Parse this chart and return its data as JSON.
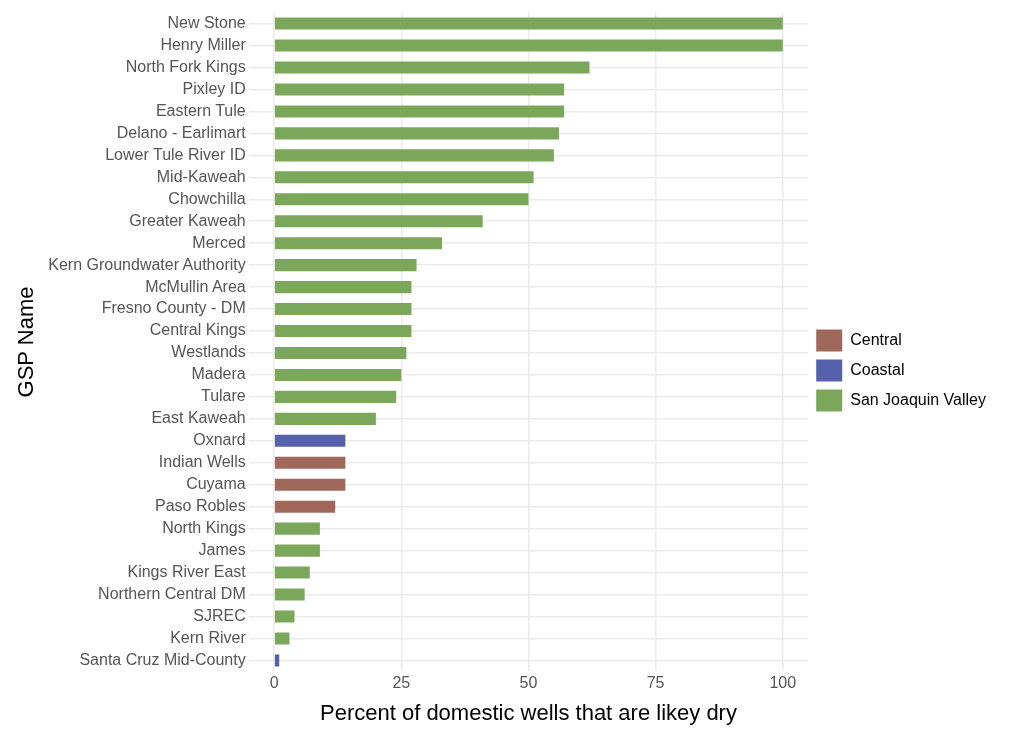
{
  "chart_data": {
    "type": "bar",
    "orientation": "horizontal",
    "stacked": true,
    "xlabel": "Percent of domestic wells that are likey dry",
    "ylabel": "GSP Name",
    "categories": [
      "New Stone",
      "Henry Miller",
      "North Fork Kings",
      "Pixley ID",
      "Eastern Tule",
      "Delano - Earlimart",
      "Lower Tule River ID",
      "Mid-Kaweah",
      "Chowchilla",
      "Greater Kaweah",
      "Merced",
      "Kern Groundwater Authority",
      "McMullin Area",
      "Fresno County - DM",
      "Central Kings",
      "Westlands",
      "Madera",
      "Tulare",
      "East Kaweah",
      "Oxnard",
      "Indian Wells",
      "Cuyama",
      "Paso Robles",
      "North Kings",
      "James",
      "Kings River East",
      "Northern Central DM",
      "SJREC",
      "Kern River",
      "Santa Cruz Mid-County"
    ],
    "series": [
      {
        "name": "Central",
        "color": "#a0685a",
        "values": [
          null,
          null,
          null,
          null,
          null,
          null,
          null,
          null,
          null,
          null,
          null,
          null,
          null,
          null,
          null,
          null,
          null,
          null,
          null,
          null,
          14,
          14,
          12,
          null,
          null,
          null,
          null,
          null,
          null,
          null
        ]
      },
      {
        "name": "Coastal",
        "color": "#5661ab",
        "values": [
          null,
          null,
          null,
          null,
          null,
          null,
          null,
          null,
          null,
          null,
          null,
          null,
          null,
          null,
          null,
          null,
          null,
          null,
          null,
          14,
          null,
          null,
          null,
          null,
          null,
          null,
          null,
          null,
          null,
          1
        ]
      },
      {
        "name": "San Joaquin Valley",
        "color": "#7ba75b",
        "values": [
          100,
          100,
          62,
          57,
          57,
          56,
          55,
          51,
          50,
          41,
          33,
          28,
          27,
          27,
          27,
          26,
          25,
          24,
          20,
          null,
          null,
          null,
          null,
          9,
          9,
          7,
          6,
          4,
          3,
          null
        ]
      }
    ],
    "xlim": [
      -5,
      105
    ],
    "xticks": [
      0,
      25,
      50,
      75,
      100
    ],
    "grid": true,
    "legend": "right"
  }
}
